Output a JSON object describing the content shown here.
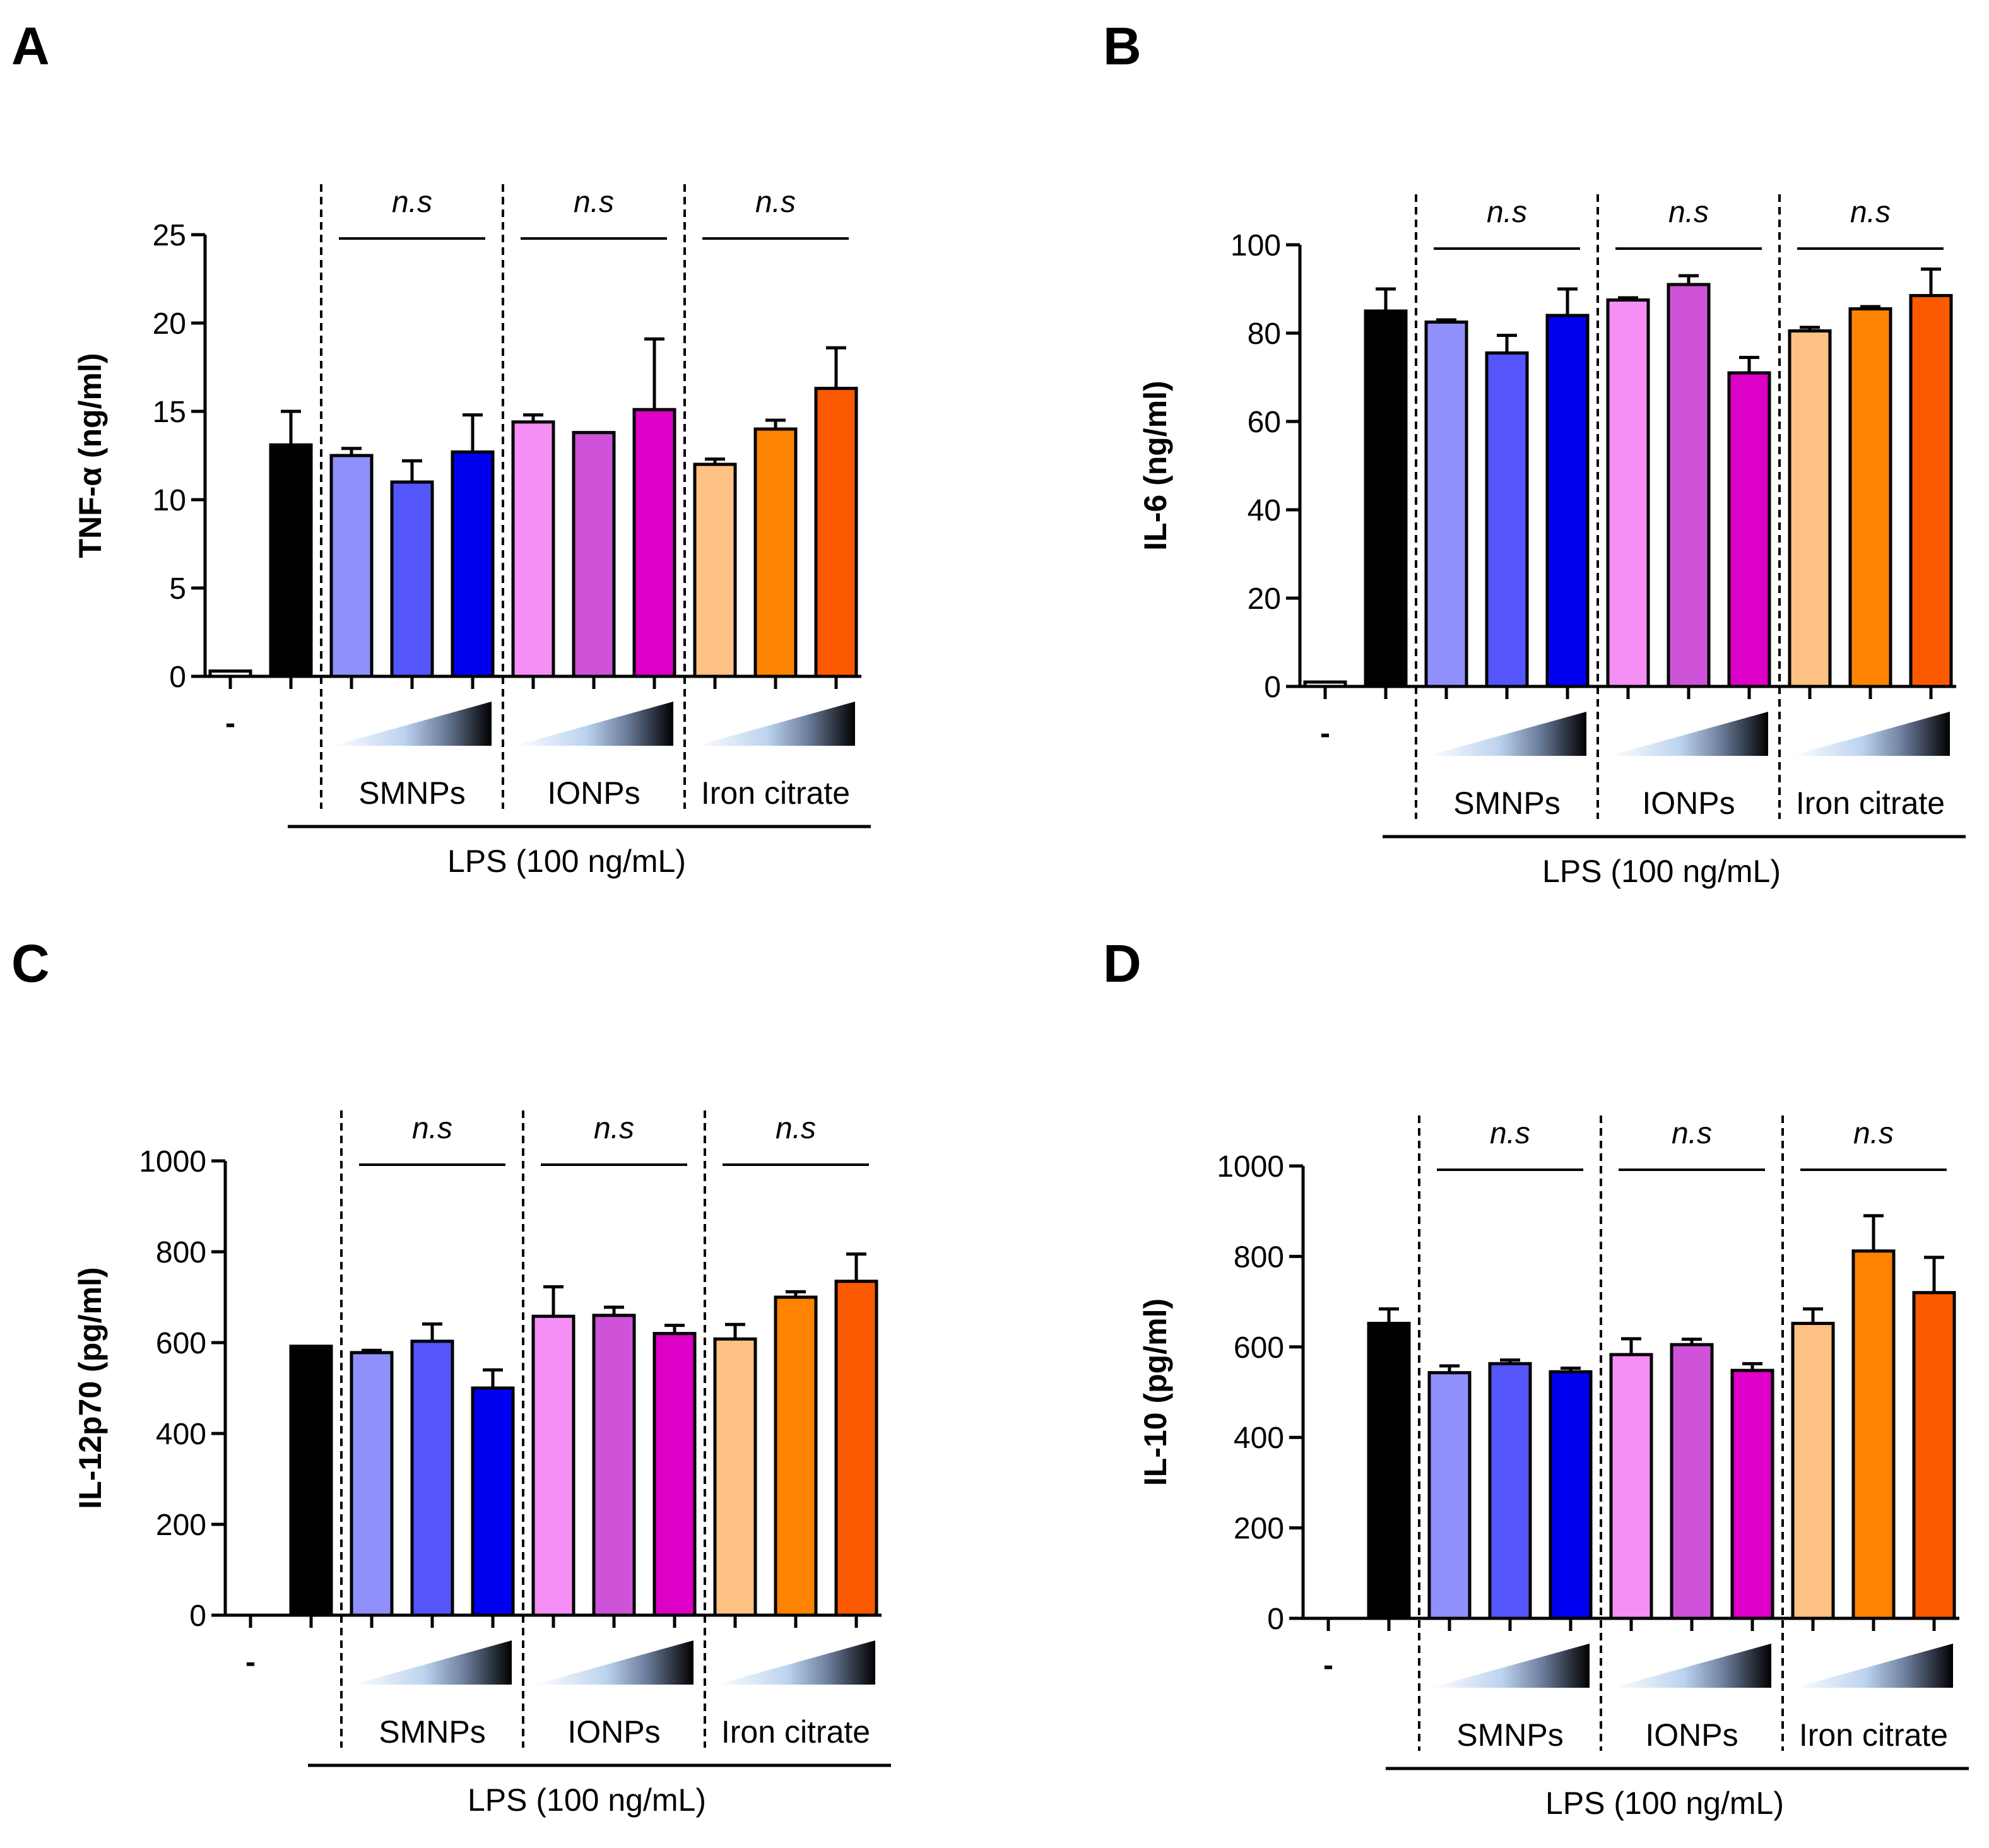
{
  "colors": {
    "control": "#ffffff",
    "lps": "#000000",
    "smnps": [
      "#8f90fb",
      "#5456fb",
      "#0000f0"
    ],
    "ionps": [
      "#f68ff5",
      "#cf53d8",
      "#dd00c6"
    ],
    "iron": [
      "#fec184",
      "#fe8300",
      "#fc5a00"
    ]
  },
  "chart_data": [
    {
      "panel": "A",
      "type": "bar",
      "ylabel": "TNF-α (ng/ml)",
      "ylim": [
        0,
        25
      ],
      "yticks": [
        "0",
        "5",
        "10",
        "15",
        "20",
        "25"
      ],
      "categories": [
        "-",
        "LPS",
        "SMNPs low",
        "SMNPs mid",
        "SMNPs high",
        "IONPs low",
        "IONPs mid",
        "IONPs high",
        "Iron citrate low",
        "Iron citrate mid",
        "Iron citrate high"
      ],
      "values": [
        0.3,
        13.1,
        12.5,
        11.0,
        12.7,
        14.4,
        13.8,
        15.1,
        12.0,
        14.0,
        16.3
      ],
      "errors": [
        0.0,
        1.9,
        0.4,
        1.2,
        2.1,
        0.4,
        0.0,
        4.0,
        0.3,
        0.5,
        2.3
      ],
      "significance": [
        "n.s",
        "n.s",
        "n.s"
      ],
      "minus_label": "-",
      "groups": [
        "SMNPs",
        "IONPs",
        "Iron citrate"
      ],
      "treatment": "LPS (100 ng/mL)"
    },
    {
      "panel": "B",
      "type": "bar",
      "ylabel": "IL-6 (ng/ml)",
      "ylim": [
        0,
        100
      ],
      "yticks": [
        "0",
        "20",
        "40",
        "60",
        "80",
        "100"
      ],
      "categories": [
        "-",
        "LPS",
        "SMNPs low",
        "SMNPs mid",
        "SMNPs high",
        "IONPs low",
        "IONPs mid",
        "IONPs high",
        "Iron citrate low",
        "Iron citrate mid",
        "Iron citrate high"
      ],
      "values": [
        1,
        85,
        82.5,
        75.5,
        84,
        87.5,
        91,
        71,
        80.5,
        85.5,
        88.5
      ],
      "errors": [
        0,
        5,
        0.5,
        4,
        6,
        0.5,
        2,
        3.5,
        0.8,
        0.5,
        6
      ],
      "significance": [
        "n.s",
        "n.s",
        "n.s"
      ],
      "minus_label": "-",
      "groups": [
        "SMNPs",
        "IONPs",
        "Iron citrate"
      ],
      "treatment": "LPS (100 ng/mL)"
    },
    {
      "panel": "C",
      "type": "bar",
      "ylabel": "IL-12p70 (pg/ml)",
      "ylim": [
        0,
        1000
      ],
      "yticks": [
        "0",
        "200",
        "400",
        "600",
        "800",
        "1000"
      ],
      "categories": [
        "-",
        "LPS",
        "SMNPs low",
        "SMNPs mid",
        "SMNPs high",
        "IONPs low",
        "IONPs mid",
        "IONPs high",
        "Iron citrate low",
        "Iron citrate mid",
        "Iron citrate high"
      ],
      "values": [
        0,
        592,
        578,
        603,
        500,
        658,
        660,
        620,
        608,
        700,
        735
      ],
      "errors": [
        0,
        0,
        5,
        38,
        40,
        65,
        18,
        18,
        32,
        12,
        60
      ],
      "significance": [
        "n.s",
        "n.s",
        "n.s"
      ],
      "minus_label": "-",
      "groups": [
        "SMNPs",
        "IONPs",
        "Iron citrate"
      ],
      "treatment": "LPS (100 ng/mL)"
    },
    {
      "panel": "D",
      "type": "bar",
      "ylabel": "IL-10 (pg/ml)",
      "ylim": [
        0,
        1000
      ],
      "yticks": [
        "0",
        "200",
        "400",
        "600",
        "800",
        "1000"
      ],
      "categories": [
        "-",
        "LPS",
        "SMNPs low",
        "SMNPs mid",
        "SMNPs high",
        "IONPs low",
        "IONPs mid",
        "IONPs high",
        "Iron citrate low",
        "Iron citrate mid",
        "Iron citrate high"
      ],
      "values": [
        0,
        652,
        543,
        563,
        545,
        583,
        605,
        548,
        652,
        812,
        720
      ],
      "errors": [
        0,
        32,
        15,
        8,
        8,
        35,
        12,
        15,
        32,
        78,
        78
      ],
      "significance": [
        "n.s",
        "n.s",
        "n.s"
      ],
      "minus_label": "-",
      "groups": [
        "SMNPs",
        "IONPs",
        "Iron citrate"
      ],
      "treatment": "LPS (100 ng/mL)"
    }
  ]
}
